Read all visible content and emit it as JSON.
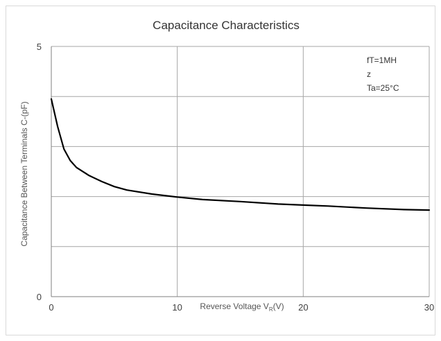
{
  "chart_data": {
    "type": "line",
    "title": "Capacitance Characteristics",
    "xlabel": "Reverse Voltage V",
    "xlabel_sub": "R",
    "xlabel_suffix": "(V)",
    "ylabel": "Capacitance Between Terminals C-(pF)",
    "xlim": [
      0,
      30
    ],
    "ylim": [
      0,
      5
    ],
    "x_ticks": [
      0,
      10,
      20,
      30
    ],
    "y_ticks": [
      0,
      5
    ],
    "y_gridlines": [
      1,
      2,
      3,
      4,
      5
    ],
    "x_gridlines": [
      10,
      20,
      30
    ],
    "grid": true,
    "annotation": [
      "fT=1MH",
      "z",
      "Ta=25°C"
    ],
    "series": [
      {
        "x": [
          0,
          0.5,
          1,
          1.5,
          2,
          3,
          4,
          5,
          6,
          8,
          10,
          12,
          15,
          18,
          20,
          22,
          25,
          28,
          30
        ],
        "y": [
          3.95,
          3.4,
          2.95,
          2.72,
          2.58,
          2.42,
          2.3,
          2.2,
          2.13,
          2.05,
          1.99,
          1.94,
          1.9,
          1.85,
          1.83,
          1.81,
          1.77,
          1.74,
          1.73
        ]
      }
    ]
  }
}
